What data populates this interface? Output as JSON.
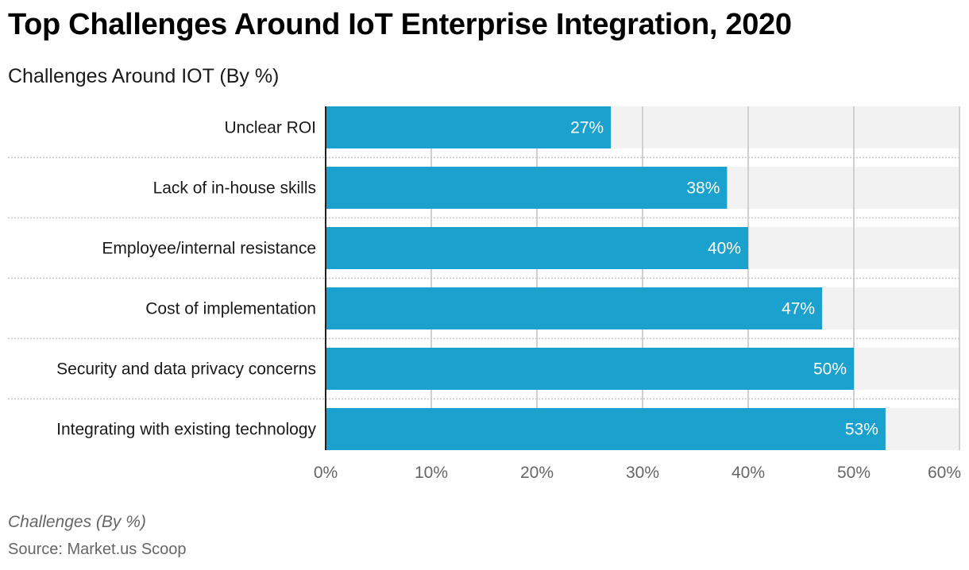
{
  "title": "Top Challenges Around IoT Enterprise Integration, 2020",
  "subtitle": "Challenges Around IOT (By %)",
  "footer": {
    "note": "Challenges (By %)",
    "source": "Source: Market.us Scoop"
  },
  "colors": {
    "bar": "#1ba1ce",
    "track": "#f2f2f2",
    "grid": "#d0d0d0",
    "axis": "#222222"
  },
  "chart_data": {
    "type": "bar",
    "orientation": "horizontal",
    "title": "Top Challenges Around IoT Enterprise Integration, 2020",
    "subtitle": "Challenges Around IOT (By %)",
    "xlabel": "Challenges (By %)",
    "ylabel": "",
    "categories": [
      "Unclear ROI",
      "Lack of in-house skills",
      "Employee/internal resistance",
      "Cost of implementation",
      "Security and data privacy concerns",
      "Integrating with existing technology"
    ],
    "values": [
      27,
      38,
      40,
      47,
      50,
      53
    ],
    "value_labels": [
      "27%",
      "38%",
      "40%",
      "47%",
      "50%",
      "53%"
    ],
    "xlim": [
      0,
      60
    ],
    "xticks": [
      0,
      10,
      20,
      30,
      40,
      50,
      60
    ],
    "xtick_labels": [
      "0%",
      "10%",
      "20%",
      "30%",
      "40%",
      "50%",
      "60%"
    ],
    "grid": true,
    "legend": "none"
  }
}
